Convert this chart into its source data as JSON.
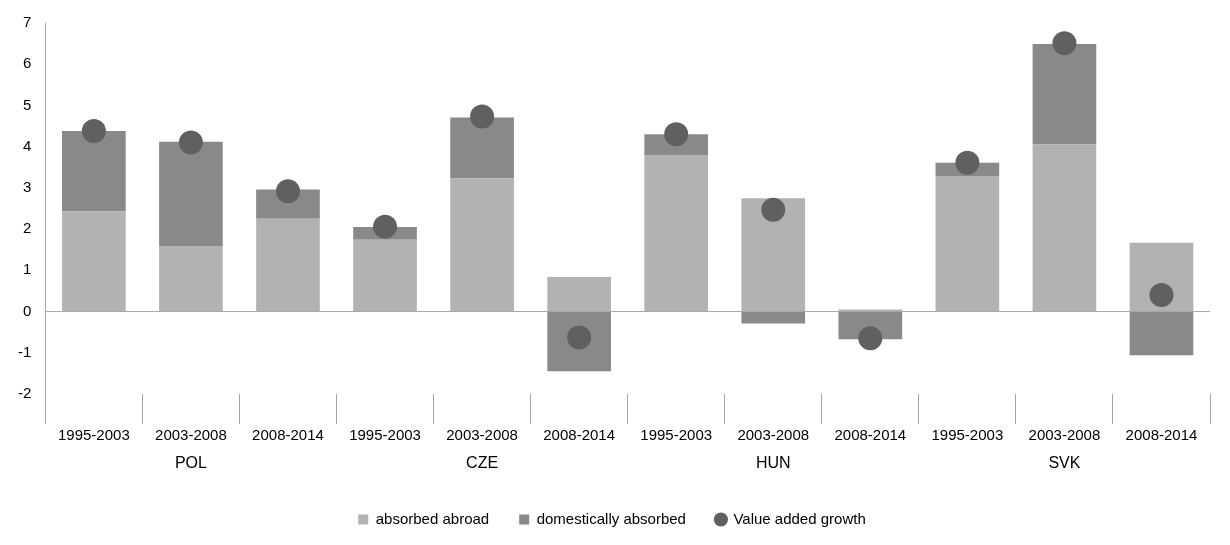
{
  "chart_data": {
    "type": "bar",
    "stacked": true,
    "categories": [
      "1995-2003",
      "2003-2008",
      "2008-2014",
      "1995-2003",
      "2003-2008",
      "2008-2014",
      "1995-2003",
      "2003-2008",
      "2008-2014",
      "1995-2003",
      "2003-2008",
      "2008-2014"
    ],
    "series": [
      {
        "name": "absorbed abroad",
        "color": "#b2b2b2",
        "values": [
          2.43,
          1.59,
          2.25,
          1.74,
          3.23,
          0.84,
          3.8,
          2.75,
          0.05,
          3.29,
          4.05,
          1.67
        ]
      },
      {
        "name": "domestically absorbed",
        "color": "#898989",
        "values": [
          1.95,
          2.53,
          0.71,
          0.31,
          1.48,
          -1.45,
          0.5,
          -0.29,
          -0.67,
          0.32,
          2.44,
          -1.06
        ]
      },
      {
        "name": "Value added growth",
        "type": "scatter",
        "marker": "circle",
        "color": "#606060",
        "values": [
          4.38,
          4.1,
          2.92,
          2.06,
          4.73,
          -0.63,
          4.3,
          2.47,
          -0.65,
          3.61,
          6.51,
          0.4
        ]
      }
    ],
    "annotations": [
      "POL",
      "CZE",
      "HUN",
      "SVK"
    ],
    "ylim": [
      -2,
      7
    ],
    "yticks": [
      -2,
      -1,
      0,
      1,
      2,
      3,
      4,
      5,
      6,
      7
    ],
    "ref_lines": [
      {
        "axis": "y",
        "value": 0,
        "color": "#a6a6a6"
      }
    ],
    "grid": false,
    "legend": "bottom"
  }
}
